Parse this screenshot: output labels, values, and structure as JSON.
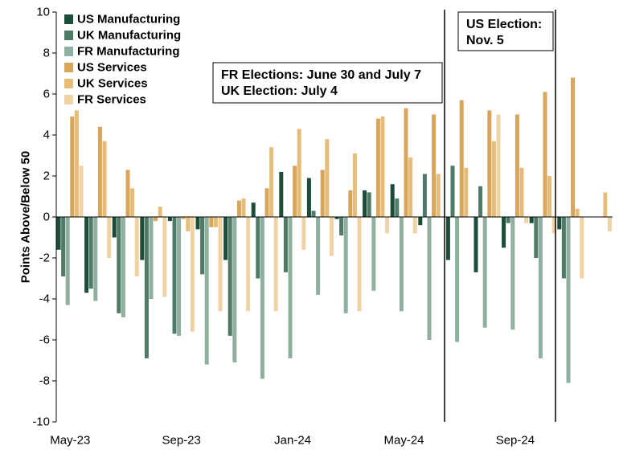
{
  "chart_data": {
    "type": "bar",
    "title": "",
    "xlabel": "",
    "ylabel": "Points Above/Below 50",
    "ylim": [
      -10,
      10
    ],
    "yticks": [
      10,
      8,
      6,
      4,
      2,
      0,
      -2,
      -4,
      -6,
      -8,
      -10
    ],
    "xtick_labels": [
      {
        "label": "May-23",
        "category_index": 0
      },
      {
        "label": "Sep-23",
        "category_index": 4
      },
      {
        "label": "Jan-24",
        "category_index": 8
      },
      {
        "label": "May-24",
        "category_index": 12
      },
      {
        "label": "Sep-24",
        "category_index": 16
      }
    ],
    "categories": [
      "May-23",
      "Jun-23",
      "Jul-23",
      "Aug-23",
      "Sep-23",
      "Oct-23",
      "Nov-23",
      "Dec-23",
      "Jan-24",
      "Feb-24",
      "Mar-24",
      "Apr-24",
      "May-24",
      "Jun-24",
      "Jul-24",
      "Aug-24",
      "Sep-24",
      "Oct-24",
      "Nov-24",
      "Dec-24"
    ],
    "series": [
      {
        "name": "US Manufacturing",
        "color": "#1b4d38",
        "values": [
          -1.6,
          -3.7,
          -1.0,
          -2.1,
          -0.2,
          -0.6,
          -2.1,
          0.7,
          2.2,
          1.9,
          -0.1,
          1.3,
          1.6,
          -0.4,
          -2.1,
          -2.7,
          -1.5,
          -0.3,
          -0.6,
          null
        ]
      },
      {
        "name": "UK Manufacturing",
        "color": "#4f7a66",
        "values": [
          -2.9,
          -3.5,
          -4.7,
          -6.9,
          -5.7,
          -2.8,
          -5.8,
          -3.0,
          -2.7,
          0.3,
          -0.9,
          1.2,
          0.9,
          2.1,
          2.5,
          1.5,
          -0.3,
          -2.0,
          -3.0,
          null
        ]
      },
      {
        "name": "FR Manufacturing",
        "color": "#8faf9f",
        "values": [
          -4.3,
          -4.1,
          -4.9,
          -4.0,
          -5.8,
          -7.2,
          -7.1,
          -7.9,
          -6.9,
          -3.8,
          -4.7,
          -3.6,
          -4.6,
          -6.0,
          -6.1,
          -5.4,
          -5.5,
          -6.9,
          -8.1,
          null
        ]
      },
      {
        "name": "US Services",
        "color": "#d7a65a",
        "values": [
          4.9,
          4.4,
          2.3,
          -0.2,
          -0.1,
          -0.5,
          0.8,
          1.4,
          2.5,
          2.3,
          1.3,
          4.8,
          5.3,
          5.0,
          5.7,
          5.2,
          5.0,
          6.1,
          6.8,
          null
        ]
      },
      {
        "name": "UK Services",
        "color": "#e6bd78",
        "values": [
          5.2,
          3.7,
          1.4,
          0.5,
          -0.7,
          -0.5,
          0.9,
          3.4,
          4.3,
          3.8,
          3.1,
          4.9,
          2.9,
          2.1,
          2.4,
          3.7,
          2.4,
          2.0,
          0.4,
          1.2
        ]
      },
      {
        "name": "FR Services",
        "color": "#f0d3a4",
        "values": [
          2.5,
          -2.0,
          -2.9,
          -3.9,
          -5.6,
          -4.6,
          -4.6,
          -4.6,
          -1.6,
          -1.9,
          -4.6,
          -0.8,
          -0.8,
          null,
          null,
          5.0,
          -0.3,
          -0.8,
          -3.0,
          -0.7
        ]
      }
    ],
    "legend_position": "top-left",
    "grid": false,
    "annotations": [
      {
        "lines": [
          "FR Elections: June 30 and July 7",
          "UK Election: July 4"
        ]
      },
      {
        "lines": [
          "US Election:",
          "Nov. 5"
        ]
      }
    ]
  }
}
